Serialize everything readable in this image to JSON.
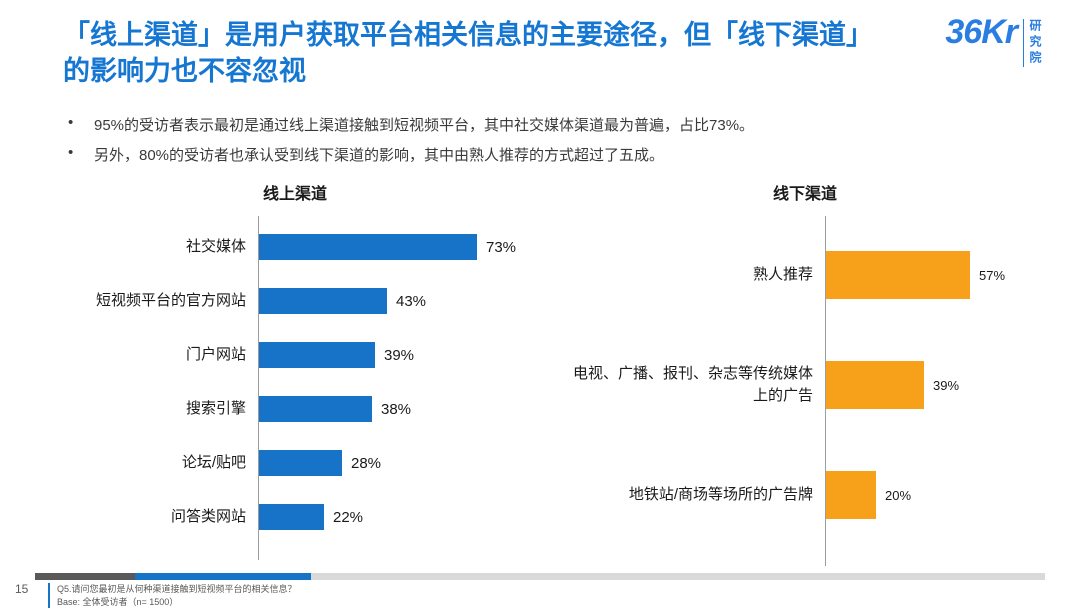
{
  "page": {
    "title": "「线上渠道」是用户获取平台相关信息的主要途径，但「线下渠道」的影响力也不容忽视",
    "bullets": [
      "95%的受访者表示最初是通过线上渠道接触到短视频平台，其中社交媒体渠道最为普遍，占比73%。",
      "另外，80%的受访者也承认受到线下渠道的影响，其中由熟人推荐的方式超过了五成。"
    ],
    "page_number": "15",
    "footnotes": [
      "Q5.请问您最初是从何种渠道接触到短视频平台的相关信息？",
      "Base: 全体受访者（n= 1500）"
    ]
  },
  "logo": {
    "brand": "36Kr",
    "sub": "研究院"
  },
  "colors": {
    "title_blue": "#1677D2",
    "bar_blue": "#1673C8",
    "bar_orange": "#F7A11A",
    "axis_gray": "#9c9c9c",
    "progress_dark": "#595959",
    "progress_blue": "#1673C8",
    "progress_light": "#D9D9D9"
  },
  "chart_data": [
    {
      "type": "bar",
      "orientation": "horizontal",
      "title": "线上渠道",
      "categories": [
        "社交媒体",
        "短视频平台的官方网站",
        "门户网站",
        "搜索引擎",
        "论坛/贴吧",
        "问答类网站"
      ],
      "values": [
        73,
        43,
        39,
        38,
        28,
        22
      ],
      "value_labels": [
        "73%",
        "43%",
        "39%",
        "38%",
        "28%",
        "22%"
      ],
      "unit": "%",
      "xlim": [
        0,
        100
      ],
      "grid": false,
      "legend": false,
      "bar_color": "#1673C8"
    },
    {
      "type": "bar",
      "orientation": "horizontal",
      "title": "线下渠道",
      "categories": [
        "熟人推荐",
        "电视、广播、报刊、杂志等传统媒体上的广告",
        "地铁站/商场等场所的广告牌"
      ],
      "values": [
        57,
        39,
        20
      ],
      "value_labels": [
        "57%",
        "39%",
        "20%"
      ],
      "unit": "%",
      "xlim": [
        0,
        100
      ],
      "grid": false,
      "legend": false,
      "bar_color": "#F7A11A"
    }
  ]
}
